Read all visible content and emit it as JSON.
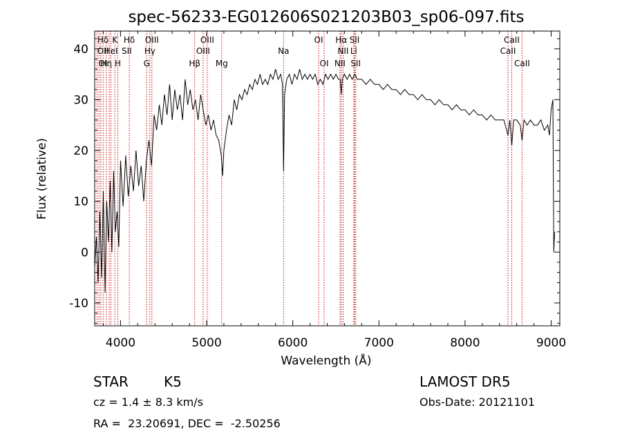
{
  "chart_data": {
    "type": "line",
    "title": "spec-56233-EG012606S021203B03_sp06-097.fits",
    "xlabel": "Wavelength (Å)",
    "ylabel": "Flux (relative)",
    "xlim": [
      3700,
      9100
    ],
    "ylim": [
      -14.5,
      43.5
    ],
    "xticks": [
      4000,
      5000,
      6000,
      7000,
      8000,
      9000
    ],
    "yticks": [
      -10,
      0,
      10,
      20,
      30,
      40
    ],
    "grid": false,
    "series": [
      {
        "color": "#000000",
        "points": [
          [
            3700,
            -3
          ],
          [
            3720,
            3
          ],
          [
            3740,
            -6
          ],
          [
            3760,
            8
          ],
          [
            3780,
            -5
          ],
          [
            3800,
            12
          ],
          [
            3820,
            -8
          ],
          [
            3840,
            10
          ],
          [
            3860,
            2
          ],
          [
            3880,
            14
          ],
          [
            3900,
            0
          ],
          [
            3920,
            16
          ],
          [
            3940,
            4
          ],
          [
            3960,
            8
          ],
          [
            3980,
            1
          ],
          [
            4000,
            18
          ],
          [
            4030,
            9
          ],
          [
            4060,
            19
          ],
          [
            4090,
            11
          ],
          [
            4120,
            17
          ],
          [
            4150,
            12
          ],
          [
            4180,
            20
          ],
          [
            4210,
            13
          ],
          [
            4240,
            17
          ],
          [
            4270,
            10
          ],
          [
            4300,
            18
          ],
          [
            4330,
            22
          ],
          [
            4360,
            17
          ],
          [
            4390,
            27
          ],
          [
            4420,
            24
          ],
          [
            4450,
            29
          ],
          [
            4480,
            25
          ],
          [
            4510,
            31
          ],
          [
            4540,
            27
          ],
          [
            4570,
            33
          ],
          [
            4600,
            26
          ],
          [
            4630,
            32
          ],
          [
            4660,
            28
          ],
          [
            4690,
            31
          ],
          [
            4720,
            26
          ],
          [
            4750,
            34
          ],
          [
            4780,
            29
          ],
          [
            4810,
            32
          ],
          [
            4840,
            28
          ],
          [
            4870,
            30
          ],
          [
            4900,
            26
          ],
          [
            4930,
            31
          ],
          [
            4960,
            28
          ],
          [
            4990,
            25
          ],
          [
            5020,
            27
          ],
          [
            5050,
            24
          ],
          [
            5080,
            26
          ],
          [
            5110,
            23
          ],
          [
            5140,
            22
          ],
          [
            5170,
            19
          ],
          [
            5185,
            15
          ],
          [
            5200,
            20
          ],
          [
            5230,
            24
          ],
          [
            5260,
            27
          ],
          [
            5290,
            25
          ],
          [
            5320,
            30
          ],
          [
            5350,
            28
          ],
          [
            5380,
            31
          ],
          [
            5410,
            30
          ],
          [
            5440,
            32
          ],
          [
            5470,
            31
          ],
          [
            5500,
            33
          ],
          [
            5530,
            32
          ],
          [
            5560,
            34
          ],
          [
            5590,
            33
          ],
          [
            5620,
            35
          ],
          [
            5650,
            33
          ],
          [
            5680,
            34
          ],
          [
            5710,
            33
          ],
          [
            5740,
            35
          ],
          [
            5770,
            34
          ],
          [
            5800,
            36
          ],
          [
            5830,
            34
          ],
          [
            5860,
            35
          ],
          [
            5880,
            33
          ],
          [
            5893,
            16
          ],
          [
            5905,
            31
          ],
          [
            5930,
            34
          ],
          [
            5960,
            35
          ],
          [
            5990,
            33
          ],
          [
            6020,
            35
          ],
          [
            6050,
            34
          ],
          [
            6080,
            36
          ],
          [
            6110,
            34
          ],
          [
            6140,
            35
          ],
          [
            6170,
            34
          ],
          [
            6200,
            35
          ],
          [
            6230,
            34
          ],
          [
            6260,
            35
          ],
          [
            6290,
            33
          ],
          [
            6320,
            34
          ],
          [
            6350,
            33
          ],
          [
            6380,
            35
          ],
          [
            6410,
            34
          ],
          [
            6440,
            35
          ],
          [
            6470,
            34
          ],
          [
            6500,
            35
          ],
          [
            6530,
            34
          ],
          [
            6550,
            34
          ],
          [
            6563,
            31
          ],
          [
            6575,
            34
          ],
          [
            6600,
            35
          ],
          [
            6630,
            34
          ],
          [
            6660,
            35
          ],
          [
            6690,
            34
          ],
          [
            6720,
            35
          ],
          [
            6750,
            34
          ],
          [
            6800,
            34
          ],
          [
            6850,
            33
          ],
          [
            6900,
            34
          ],
          [
            6950,
            33
          ],
          [
            7000,
            33
          ],
          [
            7050,
            32
          ],
          [
            7100,
            33
          ],
          [
            7150,
            32
          ],
          [
            7200,
            32
          ],
          [
            7250,
            31
          ],
          [
            7300,
            32
          ],
          [
            7350,
            31
          ],
          [
            7400,
            31
          ],
          [
            7450,
            30
          ],
          [
            7500,
            31
          ],
          [
            7550,
            30
          ],
          [
            7600,
            30
          ],
          [
            7650,
            29
          ],
          [
            7700,
            30
          ],
          [
            7750,
            29
          ],
          [
            7800,
            29
          ],
          [
            7850,
            28
          ],
          [
            7900,
            29
          ],
          [
            7950,
            28
          ],
          [
            8000,
            28
          ],
          [
            8050,
            27
          ],
          [
            8100,
            28
          ],
          [
            8150,
            27
          ],
          [
            8200,
            27
          ],
          [
            8250,
            26
          ],
          [
            8300,
            27
          ],
          [
            8350,
            26
          ],
          [
            8400,
            26
          ],
          [
            8450,
            26
          ],
          [
            8498,
            23
          ],
          [
            8520,
            26
          ],
          [
            8542,
            21
          ],
          [
            8565,
            26
          ],
          [
            8600,
            26
          ],
          [
            8640,
            25
          ],
          [
            8662,
            22
          ],
          [
            8685,
            26
          ],
          [
            8720,
            25
          ],
          [
            8760,
            26
          ],
          [
            8800,
            25
          ],
          [
            8840,
            25
          ],
          [
            8880,
            26
          ],
          [
            8920,
            24
          ],
          [
            8960,
            25
          ],
          [
            8980,
            23
          ],
          [
            9000,
            28
          ],
          [
            9020,
            30
          ],
          [
            9025,
            14
          ],
          [
            9030,
            0
          ],
          [
            9040,
            4
          ]
        ]
      }
    ],
    "line_markers": [
      {
        "label": "Hδ",
        "x": 3710,
        "row": 1
      },
      {
        "label": "K",
        "x": 3934,
        "row": 1
      },
      {
        "label": "Hδ",
        "x": 4102,
        "row": 1
      },
      {
        "label": "OIII",
        "x": 4364,
        "row": 1
      },
      {
        "label": "OIII",
        "x": 5007,
        "row": 1
      },
      {
        "label": "OI",
        "x": 6300,
        "row": 1
      },
      {
        "label": "Hα",
        "x": 6563,
        "row": 1
      },
      {
        "label": "SII",
        "x": 6717,
        "row": 1
      },
      {
        "label": "CaII",
        "x": 8542,
        "row": 1
      },
      {
        "label": "OII",
        "x": 3727,
        "row": 2
      },
      {
        "label": "HeI",
        "x": 3889,
        "row": 2
      },
      {
        "label": "SII",
        "x": 4072,
        "row": 2
      },
      {
        "label": "Hγ",
        "x": 4340,
        "row": 2
      },
      {
        "label": "OIII",
        "x": 4959,
        "row": 2
      },
      {
        "label": "Na",
        "x": 5893,
        "row": 2
      },
      {
        "label": "NII",
        "x": 6584,
        "row": 2
      },
      {
        "label": "Li",
        "x": 6708,
        "row": 2
      },
      {
        "label": "CaII",
        "x": 8498,
        "row": 2
      },
      {
        "label": "OI",
        "x": 3727,
        "row": 3
      },
      {
        "label": "Hη",
        "x": 3835,
        "row": 3
      },
      {
        "label": "H",
        "x": 3969,
        "row": 3
      },
      {
        "label": "G",
        "x": 4304,
        "row": 3
      },
      {
        "label": "Hβ",
        "x": 4861,
        "row": 3
      },
      {
        "label": "Mg",
        "x": 5175,
        "row": 3
      },
      {
        "label": "OI",
        "x": 6364,
        "row": 3
      },
      {
        "label": "NII",
        "x": 6548,
        "row": 3
      },
      {
        "label": "SII",
        "x": 6731,
        "row": 3
      },
      {
        "label": "CaII",
        "x": 8662,
        "row": 3
      }
    ],
    "marker_lines_x": [
      3727,
      3750,
      3771,
      3798,
      3835,
      3869,
      3889,
      3934,
      3969,
      4102,
      4304,
      4340,
      4364,
      4861,
      4959,
      5007,
      5175,
      5893,
      6300,
      6364,
      6548,
      6563,
      6584,
      6708,
      6717,
      6731,
      8498,
      8542,
      8662
    ]
  },
  "info": {
    "object_class": "STAR",
    "subclass": "K5",
    "redshift_line": "cz = 1.4 ± 8.3 km/s",
    "coords_line": "RA =  23.20691, DEC =  -2.50256",
    "survey": "LAMOST DR5",
    "obs_date": "Obs-Date: 20121101"
  }
}
